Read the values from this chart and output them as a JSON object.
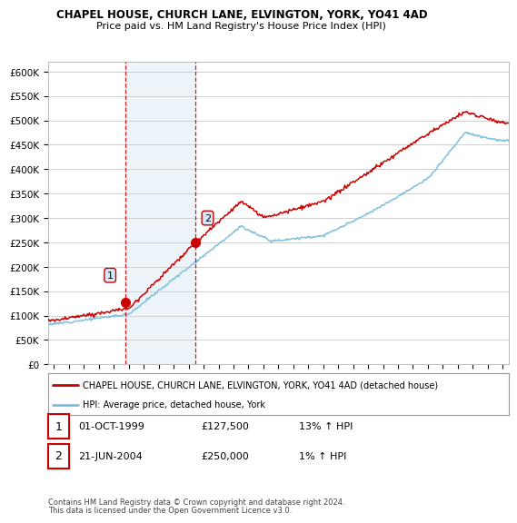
{
  "title": "CHAPEL HOUSE, CHURCH LANE, ELVINGTON, YORK, YO41 4AD",
  "subtitle": "Price paid vs. HM Land Registry's House Price Index (HPI)",
  "ylim": [
    0,
    620000
  ],
  "yticks": [
    0,
    50000,
    100000,
    150000,
    200000,
    250000,
    300000,
    350000,
    400000,
    450000,
    500000,
    550000,
    600000
  ],
  "ytick_labels": [
    "£0",
    "£50K",
    "£100K",
    "£150K",
    "£200K",
    "£250K",
    "£300K",
    "£350K",
    "£400K",
    "£450K",
    "£500K",
    "£550K",
    "£600K"
  ],
  "hpi_color": "#7fbfdf",
  "price_color": "#cc0000",
  "background_color": "#ffffff",
  "grid_color": "#d0d0d0",
  "sale1_date": 1999.75,
  "sale1_price": 127500,
  "sale2_date": 2004.47,
  "sale2_price": 250000,
  "shade_color": "#cce0f0",
  "legend_line1": "CHAPEL HOUSE, CHURCH LANE, ELVINGTON, YORK, YO41 4AD (detached house)",
  "legend_line2": "HPI: Average price, detached house, York",
  "table_row1": [
    "1",
    "01-OCT-1999",
    "£127,500",
    "13% ↑ HPI"
  ],
  "table_row2": [
    "2",
    "21-JUN-2004",
    "£250,000",
    "1% ↑ HPI"
  ],
  "footnote1": "Contains HM Land Registry data © Crown copyright and database right 2024.",
  "footnote2": "This data is licensed under the Open Government Licence v3.0.",
  "xlim_min": 1994.6,
  "xlim_max": 2025.4
}
